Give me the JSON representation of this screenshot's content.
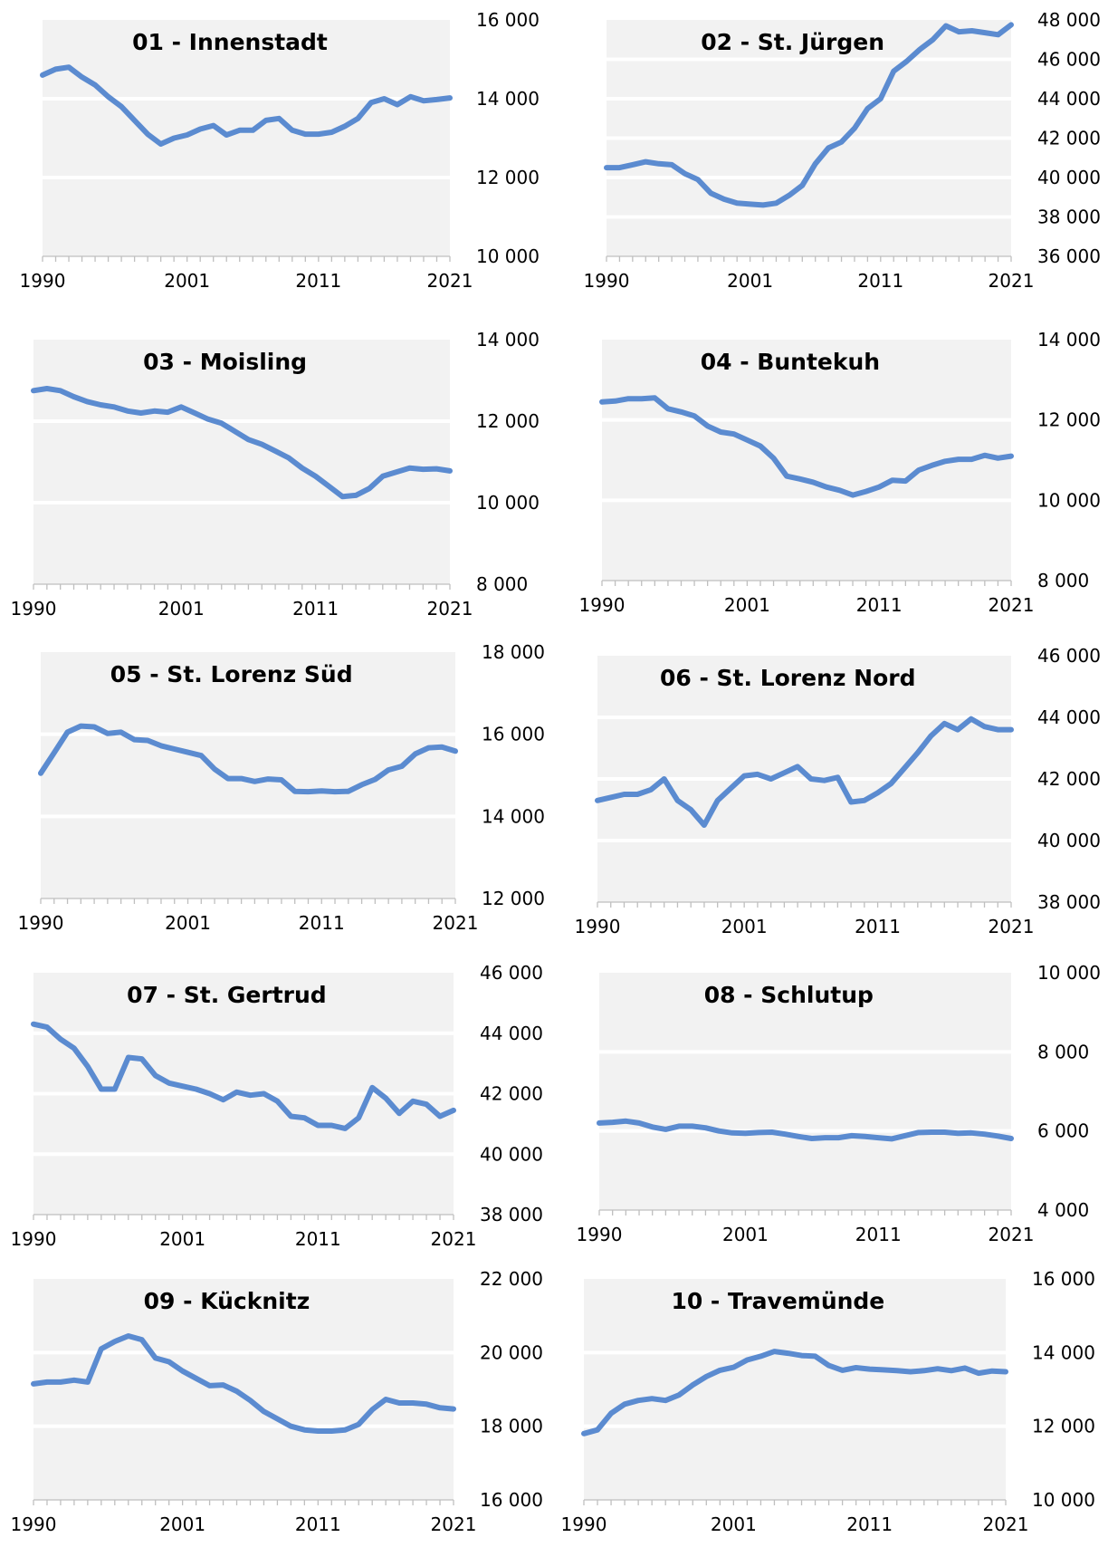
{
  "colors": {
    "series": "#5b8bd0",
    "plot_background": "#f2f2f2",
    "gridline": "#ffffff",
    "axis": "#bfbfbf"
  },
  "chart_data": [
    {
      "type": "line",
      "title": "01 - Innenstadt",
      "x": [
        1990,
        1991,
        1992,
        1993,
        1994,
        1995,
        1996,
        1997,
        1998,
        1999,
        2000,
        2001,
        2002,
        2003,
        2004,
        2005,
        2006,
        2007,
        2008,
        2009,
        2010,
        2011,
        2012,
        2013,
        2014,
        2015,
        2016,
        2017,
        2018,
        2019,
        2020,
        2021
      ],
      "x_tick_labels": [
        "1990",
        "2001",
        "2011",
        "2021"
      ],
      "y_tick_labels": [
        "16 000",
        "14 000",
        "12 000",
        "10 000"
      ],
      "ylim": [
        10000,
        16000
      ],
      "series": [
        {
          "values": [
            14600,
            14750,
            14800,
            14550,
            14350,
            14050,
            13800,
            13450,
            13100,
            12850,
            13000,
            13080,
            13230,
            13320,
            13080,
            13200,
            13200,
            13450,
            13500,
            13200,
            13100,
            13100,
            13150,
            13300,
            13500,
            13900,
            14000,
            13850,
            14050,
            13950,
            13980,
            14020
          ]
        }
      ]
    },
    {
      "type": "line",
      "title": "02 - St. Jürgen",
      "x": [
        1990,
        1991,
        1992,
        1993,
        1994,
        1995,
        1996,
        1997,
        1998,
        1999,
        2000,
        2001,
        2002,
        2003,
        2004,
        2005,
        2006,
        2007,
        2008,
        2009,
        2010,
        2011,
        2012,
        2013,
        2014,
        2015,
        2016,
        2017,
        2018,
        2019,
        2020,
        2021
      ],
      "x_tick_labels": [
        "1990",
        "2001",
        "2011",
        "2021"
      ],
      "y_tick_labels": [
        "48 000",
        "46 000",
        "44 000",
        "42 000",
        "40 000",
        "38 000",
        "36 000"
      ],
      "ylim": [
        36000,
        48000
      ],
      "series": [
        {
          "values": [
            40500,
            40500,
            40650,
            40800,
            40700,
            40650,
            40200,
            39900,
            39200,
            38900,
            38700,
            38650,
            38600,
            38700,
            39100,
            39600,
            40700,
            41500,
            41800,
            42500,
            43500,
            44000,
            45400,
            45900,
            46500,
            47000,
            47700,
            47400,
            47450,
            47350,
            47250,
            47750
          ]
        }
      ]
    },
    {
      "type": "line",
      "title": "03 - Moisling",
      "x": [
        1990,
        1991,
        1992,
        1993,
        1994,
        1995,
        1996,
        1997,
        1998,
        1999,
        2000,
        2001,
        2002,
        2003,
        2004,
        2005,
        2006,
        2007,
        2008,
        2009,
        2010,
        2011,
        2012,
        2013,
        2014,
        2015,
        2016,
        2017,
        2018,
        2019,
        2020,
        2021
      ],
      "x_tick_labels": [
        "1990",
        "2001",
        "2011",
        "2021"
      ],
      "y_tick_labels": [
        "14 000",
        "12 000",
        "10 000",
        "8 000"
      ],
      "ylim": [
        8000,
        14000
      ],
      "series": [
        {
          "values": [
            12750,
            12800,
            12750,
            12600,
            12480,
            12400,
            12350,
            12250,
            12200,
            12250,
            12220,
            12350,
            12200,
            12050,
            11950,
            11750,
            11550,
            11430,
            11270,
            11100,
            10850,
            10650,
            10400,
            10150,
            10180,
            10350,
            10650,
            10750,
            10850,
            10820,
            10830,
            10780
          ]
        }
      ]
    },
    {
      "type": "line",
      "title": "04 - Buntekuh",
      "x": [
        1990,
        1991,
        1992,
        1993,
        1994,
        1995,
        1996,
        1997,
        1998,
        1999,
        2000,
        2001,
        2002,
        2003,
        2004,
        2005,
        2006,
        2007,
        2008,
        2009,
        2010,
        2011,
        2012,
        2013,
        2014,
        2015,
        2016,
        2017,
        2018,
        2019,
        2020,
        2021
      ],
      "x_tick_labels": [
        "1990",
        "2001",
        "2011",
        "2021"
      ],
      "y_tick_labels": [
        "14 000",
        "12 000",
        "10 000",
        "8 000"
      ],
      "ylim": [
        8000,
        14000
      ],
      "series": [
        {
          "values": [
            12450,
            12470,
            12530,
            12530,
            12550,
            12280,
            12200,
            12100,
            11850,
            11700,
            11650,
            11500,
            11350,
            11050,
            10600,
            10530,
            10450,
            10330,
            10250,
            10130,
            10220,
            10330,
            10500,
            10480,
            10750,
            10870,
            10970,
            11020,
            11020,
            11120,
            11050,
            11100
          ]
        }
      ]
    },
    {
      "type": "line",
      "title": "05 - St. Lorenz Süd",
      "x": [
        1990,
        1991,
        1992,
        1993,
        1994,
        1995,
        1996,
        1997,
        1998,
        1999,
        2000,
        2001,
        2002,
        2003,
        2004,
        2005,
        2006,
        2007,
        2008,
        2009,
        2010,
        2011,
        2012,
        2013,
        2014,
        2015,
        2016,
        2017,
        2018,
        2019,
        2020,
        2021
      ],
      "x_tick_labels": [
        "1990",
        "2001",
        "2011",
        "2021"
      ],
      "y_tick_labels": [
        "18 000",
        "16 000",
        "14 000",
        "12 000"
      ],
      "ylim": [
        12000,
        18000
      ],
      "series": [
        {
          "values": [
            15050,
            15550,
            16050,
            16200,
            16180,
            16020,
            16050,
            15870,
            15850,
            15720,
            15640,
            15560,
            15480,
            15150,
            14920,
            14920,
            14850,
            14910,
            14890,
            14610,
            14600,
            14620,
            14600,
            14610,
            14770,
            14900,
            15130,
            15220,
            15520,
            15670,
            15690,
            15590
          ]
        }
      ]
    },
    {
      "type": "line",
      "title": "06 - St. Lorenz Nord",
      "x": [
        1990,
        1991,
        1992,
        1993,
        1994,
        1995,
        1996,
        1997,
        1998,
        1999,
        2000,
        2001,
        2002,
        2003,
        2004,
        2005,
        2006,
        2007,
        2008,
        2009,
        2010,
        2011,
        2012,
        2013,
        2014,
        2015,
        2016,
        2017,
        2018,
        2019,
        2020,
        2021
      ],
      "x_tick_labels": [
        "1990",
        "2001",
        "2011",
        "2021"
      ],
      "y_tick_labels": [
        "46 000",
        "44 000",
        "42 000",
        "40 000",
        "38 000"
      ],
      "ylim": [
        38000,
        46000
      ],
      "series": [
        {
          "values": [
            41300,
            41400,
            41500,
            41500,
            41650,
            42000,
            41300,
            41000,
            40500,
            41300,
            41700,
            42100,
            42150,
            42000,
            42200,
            42400,
            42000,
            41950,
            42050,
            41250,
            41300,
            41550,
            41850,
            42350,
            42850,
            43400,
            43800,
            43600,
            43950,
            43700,
            43600,
            43600
          ]
        }
      ]
    },
    {
      "type": "line",
      "title": "07 - St. Gertrud",
      "x": [
        1990,
        1991,
        1992,
        1993,
        1994,
        1995,
        1996,
        1997,
        1998,
        1999,
        2000,
        2001,
        2002,
        2003,
        2004,
        2005,
        2006,
        2007,
        2008,
        2009,
        2010,
        2011,
        2012,
        2013,
        2014,
        2015,
        2016,
        2017,
        2018,
        2019,
        2020,
        2021
      ],
      "x_tick_labels": [
        "1990",
        "2001",
        "2011",
        "2021"
      ],
      "y_tick_labels": [
        "46 000",
        "44 000",
        "42 000",
        "40 000",
        "38 000"
      ],
      "ylim": [
        38000,
        46000
      ],
      "series": [
        {
          "values": [
            44300,
            44200,
            43800,
            43500,
            42900,
            42150,
            42150,
            43200,
            43150,
            42600,
            42350,
            42250,
            42150,
            42000,
            41800,
            42050,
            41950,
            42000,
            41750,
            41250,
            41200,
            40950,
            40950,
            40850,
            41200,
            42200,
            41850,
            41350,
            41750,
            41650,
            41250,
            41450
          ]
        }
      ]
    },
    {
      "type": "line",
      "title": "08 - Schlutup",
      "x": [
        1990,
        1991,
        1992,
        1993,
        1994,
        1995,
        1996,
        1997,
        1998,
        1999,
        2000,
        2001,
        2002,
        2003,
        2004,
        2005,
        2006,
        2007,
        2008,
        2009,
        2010,
        2011,
        2012,
        2013,
        2014,
        2015,
        2016,
        2017,
        2018,
        2019,
        2020,
        2021
      ],
      "x_tick_labels": [
        "1990",
        "2001",
        "2011",
        "2021"
      ],
      "y_tick_labels": [
        "10 000",
        "8 000",
        "6 000",
        "4 000"
      ],
      "ylim": [
        4000,
        10000
      ],
      "series": [
        {
          "values": [
            6200,
            6220,
            6250,
            6200,
            6100,
            6040,
            6120,
            6120,
            6080,
            6000,
            5950,
            5940,
            5960,
            5970,
            5920,
            5860,
            5810,
            5830,
            5830,
            5880,
            5860,
            5830,
            5800,
            5880,
            5960,
            5970,
            5970,
            5940,
            5950,
            5920,
            5870,
            5810
          ]
        }
      ]
    },
    {
      "type": "line",
      "title": "09 - Kücknitz",
      "x": [
        1990,
        1991,
        1992,
        1993,
        1994,
        1995,
        1996,
        1997,
        1998,
        1999,
        2000,
        2001,
        2002,
        2003,
        2004,
        2005,
        2006,
        2007,
        2008,
        2009,
        2010,
        2011,
        2012,
        2013,
        2014,
        2015,
        2016,
        2017,
        2018,
        2019,
        2020,
        2021
      ],
      "x_tick_labels": [
        "1990",
        "2001",
        "2011",
        "2021"
      ],
      "y_tick_labels": [
        "22 000",
        "20 000",
        "18 000",
        "16 000"
      ],
      "ylim": [
        16000,
        22000
      ],
      "series": [
        {
          "values": [
            19150,
            19200,
            19200,
            19250,
            19200,
            20100,
            20300,
            20450,
            20350,
            19850,
            19750,
            19500,
            19300,
            19100,
            19120,
            18950,
            18700,
            18400,
            18200,
            18000,
            17900,
            17870,
            17870,
            17900,
            18050,
            18450,
            18730,
            18630,
            18630,
            18600,
            18500,
            18470
          ]
        }
      ]
    },
    {
      "type": "line",
      "title": "10 - Travemünde",
      "x": [
        1990,
        1991,
        1992,
        1993,
        1994,
        1995,
        1996,
        1997,
        1998,
        1999,
        2000,
        2001,
        2002,
        2003,
        2004,
        2005,
        2006,
        2007,
        2008,
        2009,
        2010,
        2011,
        2012,
        2013,
        2014,
        2015,
        2016,
        2017,
        2018,
        2019,
        2020,
        2021
      ],
      "x_tick_labels": [
        "1990",
        "2001",
        "2011",
        "2021"
      ],
      "y_tick_labels": [
        "16 000",
        "14 000",
        "12 000",
        "10 000"
      ],
      "ylim": [
        10000,
        16000
      ],
      "series": [
        {
          "values": [
            11800,
            11900,
            12350,
            12600,
            12700,
            12750,
            12700,
            12850,
            13120,
            13350,
            13520,
            13600,
            13800,
            13900,
            14030,
            13980,
            13920,
            13900,
            13650,
            13520,
            13590,
            13550,
            13530,
            13510,
            13480,
            13510,
            13560,
            13510,
            13580,
            13440,
            13500,
            13480
          ]
        }
      ]
    }
  ]
}
